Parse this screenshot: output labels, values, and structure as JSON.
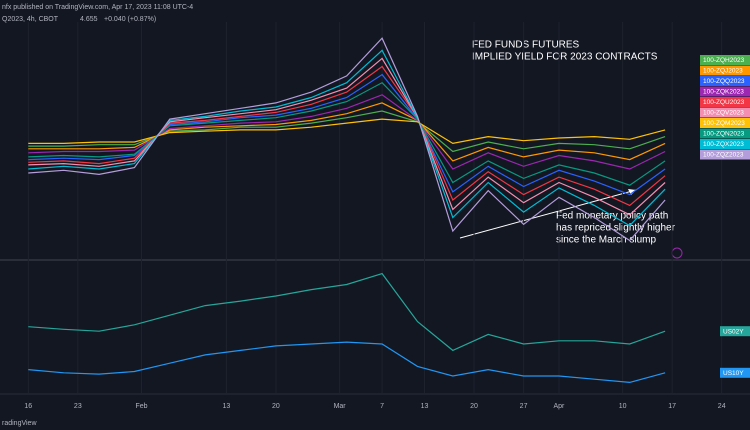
{
  "header": {
    "publisher": "nfx published on TradingView.com, Apr 17, 2023 11:08 UTC-4",
    "symbol": "Q2023, 4h, CBOT",
    "price": "4.655",
    "change": "+0.040 (+0.87%)",
    "footer": "radingView"
  },
  "chart_data": [
    {
      "type": "line",
      "title": "FED FUNDS FUTURES",
      "subtitle": "IMPLIED YIELD FOR 2023 CONTRACTS",
      "annotation": [
        "Fed monetary policy path",
        "has repriced slightly higher",
        "since the March slump"
      ],
      "x": [
        0,
        5,
        10,
        15,
        20,
        25,
        30,
        35,
        40,
        45,
        50,
        55,
        60,
        65,
        70,
        75,
        80,
        85,
        90
      ],
      "xlim": [
        -4,
        102
      ],
      "ylim": [
        3.85,
        5.6
      ],
      "legend": "top-right",
      "series": [
        {
          "name": "100-ZQH2023",
          "color": "#4caf50",
          "values": [
            4.68,
            4.68,
            4.69,
            4.69,
            4.79,
            4.8,
            4.82,
            4.82,
            4.85,
            4.89,
            4.94,
            4.86,
            4.64,
            4.71,
            4.66,
            4.7,
            4.69,
            4.66,
            4.75
          ]
        },
        {
          "name": "100-ZQJ2023",
          "color": "#ff9800",
          "values": [
            4.66,
            4.66,
            4.66,
            4.67,
            4.8,
            4.82,
            4.83,
            4.84,
            4.87,
            4.92,
            5.0,
            4.87,
            4.57,
            4.67,
            4.6,
            4.65,
            4.63,
            4.58,
            4.7
          ]
        },
        {
          "name": "100-ZQQ2023",
          "color": "#2962ff",
          "values": [
            4.58,
            4.59,
            4.58,
            4.61,
            4.84,
            4.86,
            4.89,
            4.91,
            4.96,
            5.04,
            5.21,
            4.88,
            4.34,
            4.53,
            4.38,
            4.5,
            4.42,
            4.32,
            4.51
          ]
        },
        {
          "name": "100-ZQK2023",
          "color": "#9c27b0",
          "values": [
            4.63,
            4.64,
            4.64,
            4.65,
            4.81,
            4.83,
            4.85,
            4.86,
            4.9,
            4.96,
            5.06,
            4.87,
            4.51,
            4.63,
            4.53,
            4.61,
            4.57,
            4.51,
            4.64
          ]
        },
        {
          "name": "100-ZQU2023",
          "color": "#f23645",
          "values": [
            4.56,
            4.57,
            4.55,
            4.59,
            4.85,
            4.87,
            4.9,
            4.93,
            4.99,
            5.08,
            5.27,
            4.89,
            4.28,
            4.49,
            4.32,
            4.45,
            4.36,
            4.24,
            4.46
          ]
        },
        {
          "name": "100-ZQV2023",
          "color": "#f48fb1",
          "values": [
            4.54,
            4.55,
            4.53,
            4.57,
            4.86,
            4.89,
            4.92,
            4.95,
            5.02,
            5.11,
            5.33,
            4.89,
            4.21,
            4.45,
            4.26,
            4.41,
            4.3,
            4.17,
            4.41
          ]
        },
        {
          "name": "100-ZQM2023",
          "color": "#ffc107",
          "values": [
            4.7,
            4.7,
            4.71,
            4.71,
            4.78,
            4.79,
            4.8,
            4.8,
            4.82,
            4.85,
            4.88,
            4.86,
            4.7,
            4.75,
            4.72,
            4.74,
            4.75,
            4.73,
            4.8
          ]
        },
        {
          "name": "100-ZQN2023",
          "color": "#089981",
          "values": [
            4.6,
            4.61,
            4.6,
            4.62,
            4.83,
            4.85,
            4.87,
            4.89,
            4.94,
            5.01,
            5.15,
            4.88,
            4.41,
            4.57,
            4.44,
            4.54,
            4.48,
            4.39,
            4.57
          ]
        },
        {
          "name": "100-ZQX2023",
          "color": "#00bcd4",
          "values": [
            4.51,
            4.53,
            4.51,
            4.55,
            4.87,
            4.9,
            4.94,
            4.97,
            5.04,
            5.15,
            5.39,
            4.89,
            4.15,
            4.41,
            4.19,
            4.37,
            4.24,
            4.09,
            4.36
          ]
        },
        {
          "name": "100-ZQZ2023",
          "color": "#b39ddb",
          "values": [
            4.48,
            4.5,
            4.47,
            4.52,
            4.88,
            4.92,
            4.96,
            5.0,
            5.08,
            5.2,
            5.48,
            4.9,
            4.05,
            4.35,
            4.1,
            4.3,
            4.15,
            3.98,
            4.28
          ]
        }
      ]
    },
    {
      "type": "line",
      "x": [
        0,
        5,
        10,
        15,
        20,
        25,
        30,
        35,
        40,
        45,
        50,
        55,
        60,
        65,
        70,
        75,
        80,
        85,
        90
      ],
      "xlim": [
        -4,
        102
      ],
      "ylim": [
        3.2,
        5.2
      ],
      "grid": true,
      "xticks": [
        {
          "value": 0,
          "label": "16"
        },
        {
          "value": 7,
          "label": "23"
        },
        {
          "value": 16,
          "label": "Feb"
        },
        {
          "value": 28,
          "label": "13"
        },
        {
          "value": 35,
          "label": "20"
        },
        {
          "value": 44,
          "label": "Mar"
        },
        {
          "value": 50,
          "label": "7"
        },
        {
          "value": 56,
          "label": "13"
        },
        {
          "value": 63,
          "label": "20"
        },
        {
          "value": 70,
          "label": "27"
        },
        {
          "value": 75,
          "label": "Apr"
        },
        {
          "value": 84,
          "label": "10"
        },
        {
          "value": 91,
          "label": "17"
        },
        {
          "value": 98,
          "label": "24"
        }
      ],
      "series": [
        {
          "name": "US02Y",
          "color": "#26a69a",
          "values": [
            4.22,
            4.18,
            4.15,
            4.25,
            4.4,
            4.55,
            4.62,
            4.7,
            4.8,
            4.88,
            5.05,
            4.3,
            3.85,
            4.1,
            3.95,
            4.0,
            4.0,
            3.95,
            4.15
          ]
        },
        {
          "name": "US10Y",
          "color": "#2196f3",
          "values": [
            3.55,
            3.5,
            3.48,
            3.52,
            3.65,
            3.78,
            3.85,
            3.92,
            3.95,
            3.98,
            3.95,
            3.6,
            3.45,
            3.55,
            3.45,
            3.45,
            3.4,
            3.35,
            3.5
          ]
        }
      ]
    }
  ]
}
